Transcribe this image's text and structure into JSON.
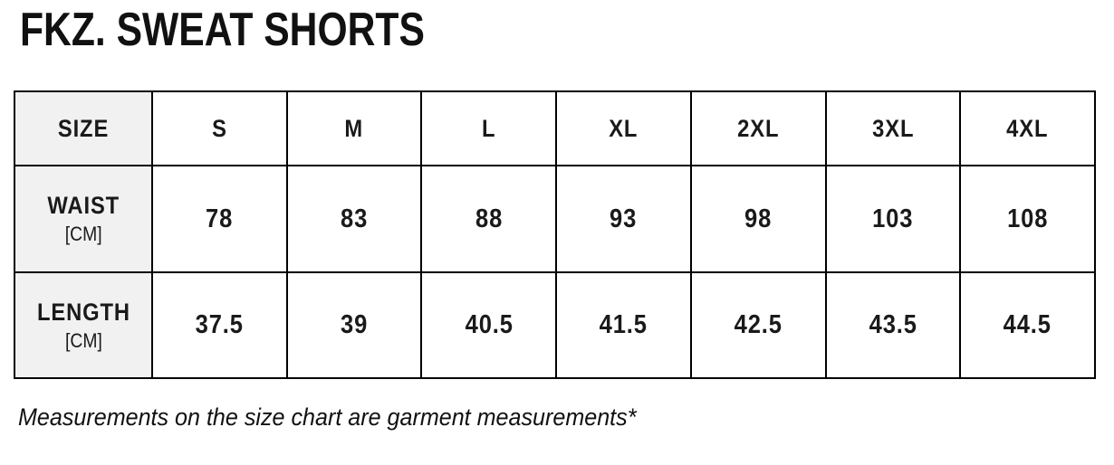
{
  "page": {
    "title": "FKZ. SWEAT SHORTS",
    "footnote": "Measurements on the size chart are garment measurements*"
  },
  "size_chart": {
    "corner_label": "SIZE",
    "sizes": [
      "S",
      "M",
      "L",
      "XL",
      "2XL",
      "3XL",
      "4XL"
    ],
    "rows": [
      {
        "label": "WAIST",
        "unit": "[CM]",
        "values": [
          "78",
          "83",
          "88",
          "93",
          "98",
          "103",
          "108"
        ]
      },
      {
        "label": "LENGTH",
        "unit": "[CM]",
        "values": [
          "37.5",
          "39",
          "40.5",
          "41.5",
          "42.5",
          "43.5",
          "44.5"
        ]
      }
    ]
  },
  "colors": {
    "border": "#000000",
    "label_column_bg": "#f1f1f1",
    "text": "#1a1a1a",
    "background": "#ffffff"
  }
}
